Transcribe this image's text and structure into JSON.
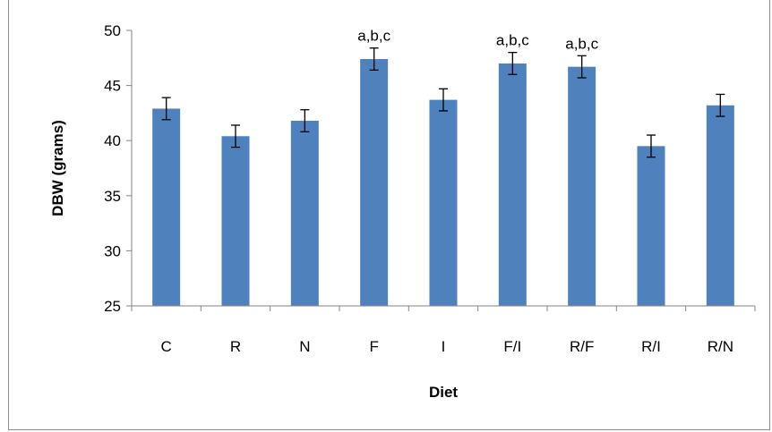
{
  "chart_data": {
    "type": "bar",
    "title": "",
    "xlabel": "Diet",
    "ylabel": "DBW (grams)",
    "ylim": [
      25,
      50
    ],
    "yticks": [
      25,
      30,
      35,
      40,
      45,
      50
    ],
    "categories": [
      "C",
      "R",
      "N",
      "F",
      "I",
      "F/I",
      "R/F",
      "R/I",
      "R/N"
    ],
    "values": [
      42.9,
      40.4,
      41.8,
      47.4,
      43.7,
      47.0,
      46.7,
      39.5,
      43.2
    ],
    "errors": [
      1.0,
      1.0,
      1.0,
      1.0,
      1.0,
      1.0,
      1.0,
      1.0,
      1.0
    ],
    "annotations": [
      "",
      "",
      "",
      "a,b,c",
      "",
      "a,b,c",
      "a,b,c",
      "",
      ""
    ],
    "grid": false,
    "legend": "none",
    "bar_color": "#4f81bd"
  }
}
